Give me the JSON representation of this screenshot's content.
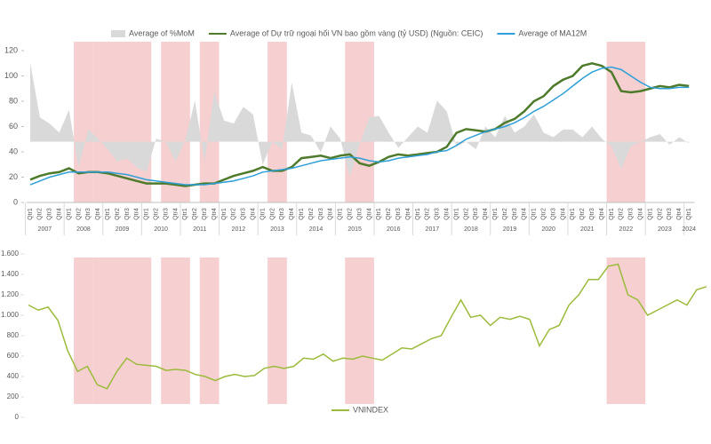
{
  "chart_data": [
    {
      "type": "combo",
      "categories": [
        "Qtr1",
        "Qtr2",
        "Qtr3",
        "Qtr4",
        "Qtr1",
        "Qtr2",
        "Qtr3",
        "Qtr4",
        "Qtr1",
        "Qtr2",
        "Qtr3",
        "Qtr4",
        "Qtr1",
        "Qtr2",
        "Qtr3",
        "Qtr4",
        "Qtr1",
        "Qtr2",
        "Qtr3",
        "Qtr4",
        "Qtr1",
        "Qtr2",
        "Qtr3",
        "Qtr4",
        "Qtr1",
        "Qtr2",
        "Qtr3",
        "Qtr4",
        "Qtr1",
        "Qtr2",
        "Qtr3",
        "Qtr4",
        "Qtr1",
        "Qtr2",
        "Qtr3",
        "Qtr4",
        "Qtr1",
        "Qtr2",
        "Qtr3",
        "Qtr4",
        "Qtr1",
        "Qtr2",
        "Qtr3",
        "Qtr4",
        "Qtr1",
        "Qtr2",
        "Qtr3",
        "Qtr4",
        "Qtr1",
        "Qtr2",
        "Qtr3",
        "Qtr4",
        "Qtr1",
        "Qtr2",
        "Qtr3",
        "Qtr4",
        "Qtr1",
        "Qtr2",
        "Qtr3",
        "Qtr4",
        "Qtr1",
        "Qtr2",
        "Qtr3",
        "Qtr4",
        "Qtr1",
        "Qtr2",
        "Qtr3",
        "Qtr4",
        "Qtr1"
      ],
      "years": [
        "2007",
        "2008",
        "2009",
        "2010",
        "2011",
        "2012",
        "2013",
        "2014",
        "2015",
        "2016",
        "2017",
        "2018",
        "2019",
        "2020",
        "2021",
        "2022",
        "2023",
        "2024"
      ],
      "ylim": [
        0,
        120
      ],
      "yticks": [
        0,
        20,
        40,
        60,
        80,
        100,
        120
      ],
      "y2lim": [
        -4,
        6
      ],
      "shaded_periods": [
        [
          5,
          6
        ],
        [
          7,
          12
        ],
        [
          14,
          16
        ],
        [
          18,
          19
        ],
        [
          25,
          26
        ],
        [
          33,
          35
        ],
        [
          60,
          63
        ]
      ],
      "series": [
        {
          "name": "Average of %MoM",
          "type": "area",
          "axis": "y2",
          "color": "#d9d9d9",
          "values": [
            5.2,
            1.6,
            1.2,
            0.6,
            2.1,
            -1.7,
            0.8,
            0.2,
            -0.5,
            -1.3,
            -1.1,
            -1.7,
            -2.0,
            0.2,
            0,
            -1.3,
            0.1,
            2.7,
            -1.3,
            3.3,
            1.4,
            1.2,
            2.3,
            1.8,
            -1.5,
            0,
            -0.5,
            3.9,
            0.6,
            0.4,
            -0.7,
            1.0,
            0.2,
            -2.3,
            -0.2,
            1.6,
            1.7,
            0.6,
            -0.4,
            0.3,
            1.0,
            0.6,
            2.7,
            2.0,
            -0.3,
            0,
            -0.5,
            1.0,
            0.3,
            1.7,
            0.6,
            1.0,
            1.8,
            0.6,
            0.3,
            0.8,
            0.8,
            0.3,
            1.0,
            0.2,
            -0.3,
            -1.8,
            -0.3,
            0,
            0.3,
            0.5,
            -0.2,
            0.3,
            -0.1
          ]
        },
        {
          "name": "Average of Dự trữ ngoại hối VN bao gồm vàng (tỷ USD) (Nguồn: CEIC)",
          "type": "line",
          "color": "#4e7a2b",
          "values": [
            18,
            21,
            23,
            24,
            27,
            23,
            24,
            24,
            23,
            21,
            19,
            17,
            15,
            15,
            15,
            14,
            13,
            14,
            15,
            15,
            18,
            21,
            23,
            25,
            28,
            25,
            25,
            28,
            35,
            36,
            37,
            35,
            37,
            38,
            31,
            29,
            32,
            36,
            38,
            37,
            38,
            39,
            40,
            44,
            55,
            58,
            57,
            56,
            58,
            63,
            66,
            72,
            80,
            84,
            92,
            97,
            100,
            108,
            110,
            108,
            103,
            88,
            87,
            88,
            90,
            92,
            91,
            93,
            92
          ]
        },
        {
          "name": "Average of MA12M",
          "type": "line",
          "color": "#2e9fd8",
          "values": [
            14,
            17,
            20,
            22,
            24,
            24,
            24,
            24,
            24,
            23,
            22,
            20,
            18,
            17,
            16,
            15,
            14,
            14,
            14,
            15,
            16,
            17,
            19,
            21,
            24,
            25,
            26,
            27,
            29,
            31,
            33,
            34,
            35,
            36,
            35,
            33,
            32,
            33,
            35,
            36,
            37,
            38,
            40,
            41,
            45,
            50,
            53,
            56,
            58,
            60,
            63,
            67,
            72,
            76,
            81,
            86,
            92,
            98,
            103,
            106,
            107,
            105,
            100,
            95,
            91,
            90,
            90,
            91,
            91
          ]
        }
      ]
    },
    {
      "type": "line",
      "ylim": [
        0,
        1600
      ],
      "yticks": [
        0,
        200,
        400,
        600,
        800,
        {
          "value": 1000,
          "label": "1.000"
        },
        {
          "value": 1200,
          "label": "1.200"
        },
        {
          "value": 1400,
          "label": "1.400"
        },
        {
          "value": 1600,
          "label": "1.600"
        }
      ],
      "series": [
        {
          "name": "VNINDEX",
          "color": "#9bbb3b",
          "values": [
            1100,
            1050,
            1080,
            950,
            650,
            450,
            500,
            320,
            280,
            450,
            580,
            520,
            510,
            500,
            460,
            470,
            460,
            420,
            400,
            360,
            400,
            420,
            400,
            410,
            480,
            500,
            480,
            500,
            580,
            570,
            620,
            550,
            580,
            570,
            600,
            580,
            560,
            620,
            680,
            670,
            720,
            770,
            800,
            980,
            1150,
            980,
            1000,
            900,
            980,
            960,
            990,
            960,
            700,
            860,
            900,
            1100,
            1200,
            1350,
            1350,
            1480,
            1500,
            1200,
            1150,
            1000,
            1050,
            1100,
            1150,
            1100,
            1250,
            1280
          ]
        }
      ]
    }
  ]
}
